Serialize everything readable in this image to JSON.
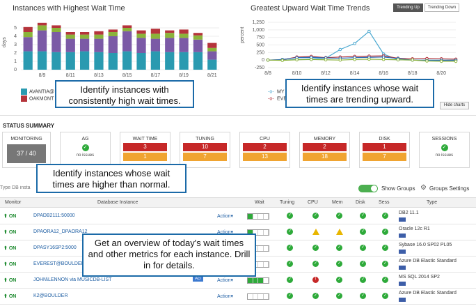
{
  "left_chart": {
    "title": "Instances with Highest Wait Time",
    "ylabel": "days",
    "legend": [
      {
        "label": "AVANTIA@",
        "color": "#2a9ab0"
      },
      {
        "label": "OAKMONT",
        "color": "#b5343b"
      }
    ]
  },
  "right_chart": {
    "title": "Greatest Upward Wait Time Trends",
    "ylabel": "percent",
    "tabs": [
      "Trending Up",
      "Trending Down"
    ],
    "legend": [
      {
        "label": "MY",
        "color": "#4aa8d0"
      },
      {
        "label": "EVE",
        "color": "#b5343b"
      }
    ],
    "hide_charts": "Hide charts"
  },
  "chart_data": [
    {
      "type": "bar",
      "title": "Instances with Highest Wait Time",
      "ylabel": "days",
      "ylim": [
        0,
        6
      ],
      "yticks": [
        "0",
        "1",
        "2",
        "3",
        "4",
        "5"
      ],
      "xticks": [
        "8/9",
        "8/11",
        "8/13",
        "8/15",
        "8/17",
        "8/19",
        "8/21"
      ],
      "categories": [
        "8/8",
        "8/9",
        "8/10",
        "8/11",
        "8/12",
        "8/13",
        "8/14",
        "8/15",
        "8/16",
        "8/17",
        "8/18",
        "8/19",
        "8/20",
        "8/21"
      ],
      "series": [
        {
          "color": "#2a9ab0",
          "values": [
            2.2,
            2.2,
            2.1,
            2.1,
            2.2,
            2.1,
            2.0,
            2.2,
            2.0,
            2.2,
            2.1,
            2.1,
            2.1,
            1.2
          ]
        },
        {
          "color": "#7b5aa6",
          "values": [
            1.7,
            2.5,
            2.4,
            1.6,
            1.5,
            1.6,
            2.0,
            2.4,
            1.8,
            1.5,
            1.7,
            1.7,
            1.5,
            1.0
          ]
        },
        {
          "color": "#8bb33a",
          "values": [
            0.6,
            0.6,
            0.5,
            0.5,
            0.5,
            0.5,
            0.5,
            0.4,
            0.5,
            0.6,
            0.6,
            0.5,
            0.5,
            0.4
          ]
        },
        {
          "color": "#b5343b",
          "values": [
            0.6,
            0.3,
            0.3,
            0.3,
            0.3,
            0.4,
            0.3,
            0.3,
            0.4,
            0.6,
            0.3,
            0.5,
            0.3,
            0.6
          ]
        }
      ]
    },
    {
      "type": "line",
      "title": "Greatest Upward Wait Time Trends",
      "ylabel": "percent",
      "ylim": [
        -250,
        1250
      ],
      "yticks": [
        "-250",
        "0",
        "250",
        "500",
        "750",
        "1,000",
        "1,250"
      ],
      "xticks": [
        "8/8",
        "8/10",
        "8/12",
        "8/14",
        "8/16",
        "8/18",
        "8/20"
      ],
      "series": [
        {
          "color": "#4aa8d0",
          "values": [
            0,
            0,
            20,
            40,
            60,
            350,
            550,
            950,
            200,
            10,
            0,
            0,
            0,
            0
          ]
        },
        {
          "color": "#b5343b",
          "values": [
            0,
            10,
            100,
            120,
            80,
            100,
            120,
            130,
            140,
            60,
            40,
            50,
            40,
            30
          ]
        },
        {
          "color": "#2e6db4",
          "values": [
            0,
            20,
            80,
            90,
            70,
            60,
            80,
            90,
            100,
            50,
            0,
            -20,
            -10,
            -10
          ]
        },
        {
          "color": "#8bb33a",
          "values": [
            0,
            -10,
            10,
            20,
            10,
            0,
            20,
            30,
            20,
            10,
            0,
            -30,
            -40,
            -40
          ]
        }
      ]
    }
  ],
  "callouts": {
    "c1": "Identify instances with consistently high wait times.",
    "c2": "Identify instances whose wait times are trending upward.",
    "c3": "Identify instances whose wait times are higher than normal.",
    "c4": "Get an overview of today's wait times and other metrics for each instance. Drill in for details."
  },
  "status_summary": {
    "title": "STATUS SUMMARY",
    "monitoring": {
      "label": "MONITORING",
      "value": "37 / 40"
    },
    "ag": {
      "label": "AG",
      "text": "no issues"
    },
    "wait_time": {
      "label": "WAIT TIME",
      "red": "3",
      "yellow": "1"
    },
    "tuning": {
      "label": "TUNING",
      "red": "10",
      "yellow": "7"
    },
    "cpu": {
      "label": "CPU",
      "red": "2",
      "yellow": "13"
    },
    "memory": {
      "label": "MEMORY",
      "red": "2",
      "yellow": "18"
    },
    "disk": {
      "label": "DISK",
      "red": "1",
      "yellow": "7"
    },
    "sessions": {
      "label": "SESSIONS",
      "text": "no issues"
    }
  },
  "toolbar": {
    "search_placeholder": "Type DB insta",
    "show_groups": "Show Groups",
    "groups_settings": "Groups Settings"
  },
  "table": {
    "headers": [
      "Monitor",
      "Database Instance",
      "Wait",
      "Tuning",
      "CPU",
      "Mem",
      "Disk",
      "Sess",
      "Type"
    ],
    "rows": [
      {
        "monitor": "ON",
        "name": "DPADB2111:50000",
        "action": "Action",
        "type": "DB2 11.1",
        "wait": 1
      },
      {
        "monitor": "ON",
        "name": "DPAORA12_DPAORA12",
        "action": "Action",
        "type": "Oracle 12c R1",
        "wait": 1
      },
      {
        "monitor": "ON",
        "name": "DPASY16SP2:5000",
        "action": "Action",
        "type": "Sybase 16.0 SP02 PL05",
        "wait": 1
      },
      {
        "monitor": "ON",
        "name": "EVEREST@BOULDER",
        "action": "Action",
        "type": "Azure DB Elastic Standard",
        "wait": 1
      },
      {
        "monitor": "ON",
        "name": "JOHN\\LENNON via MUSICDB-LIST",
        "action": "Action",
        "badge": "AG",
        "type": "MS SQL 2014 SP2",
        "wait": 3
      },
      {
        "monitor": "ON",
        "name": "K2@BOULDER",
        "action": "Action",
        "type": "Azure DB Elastic Standard",
        "wait": 0
      }
    ]
  }
}
